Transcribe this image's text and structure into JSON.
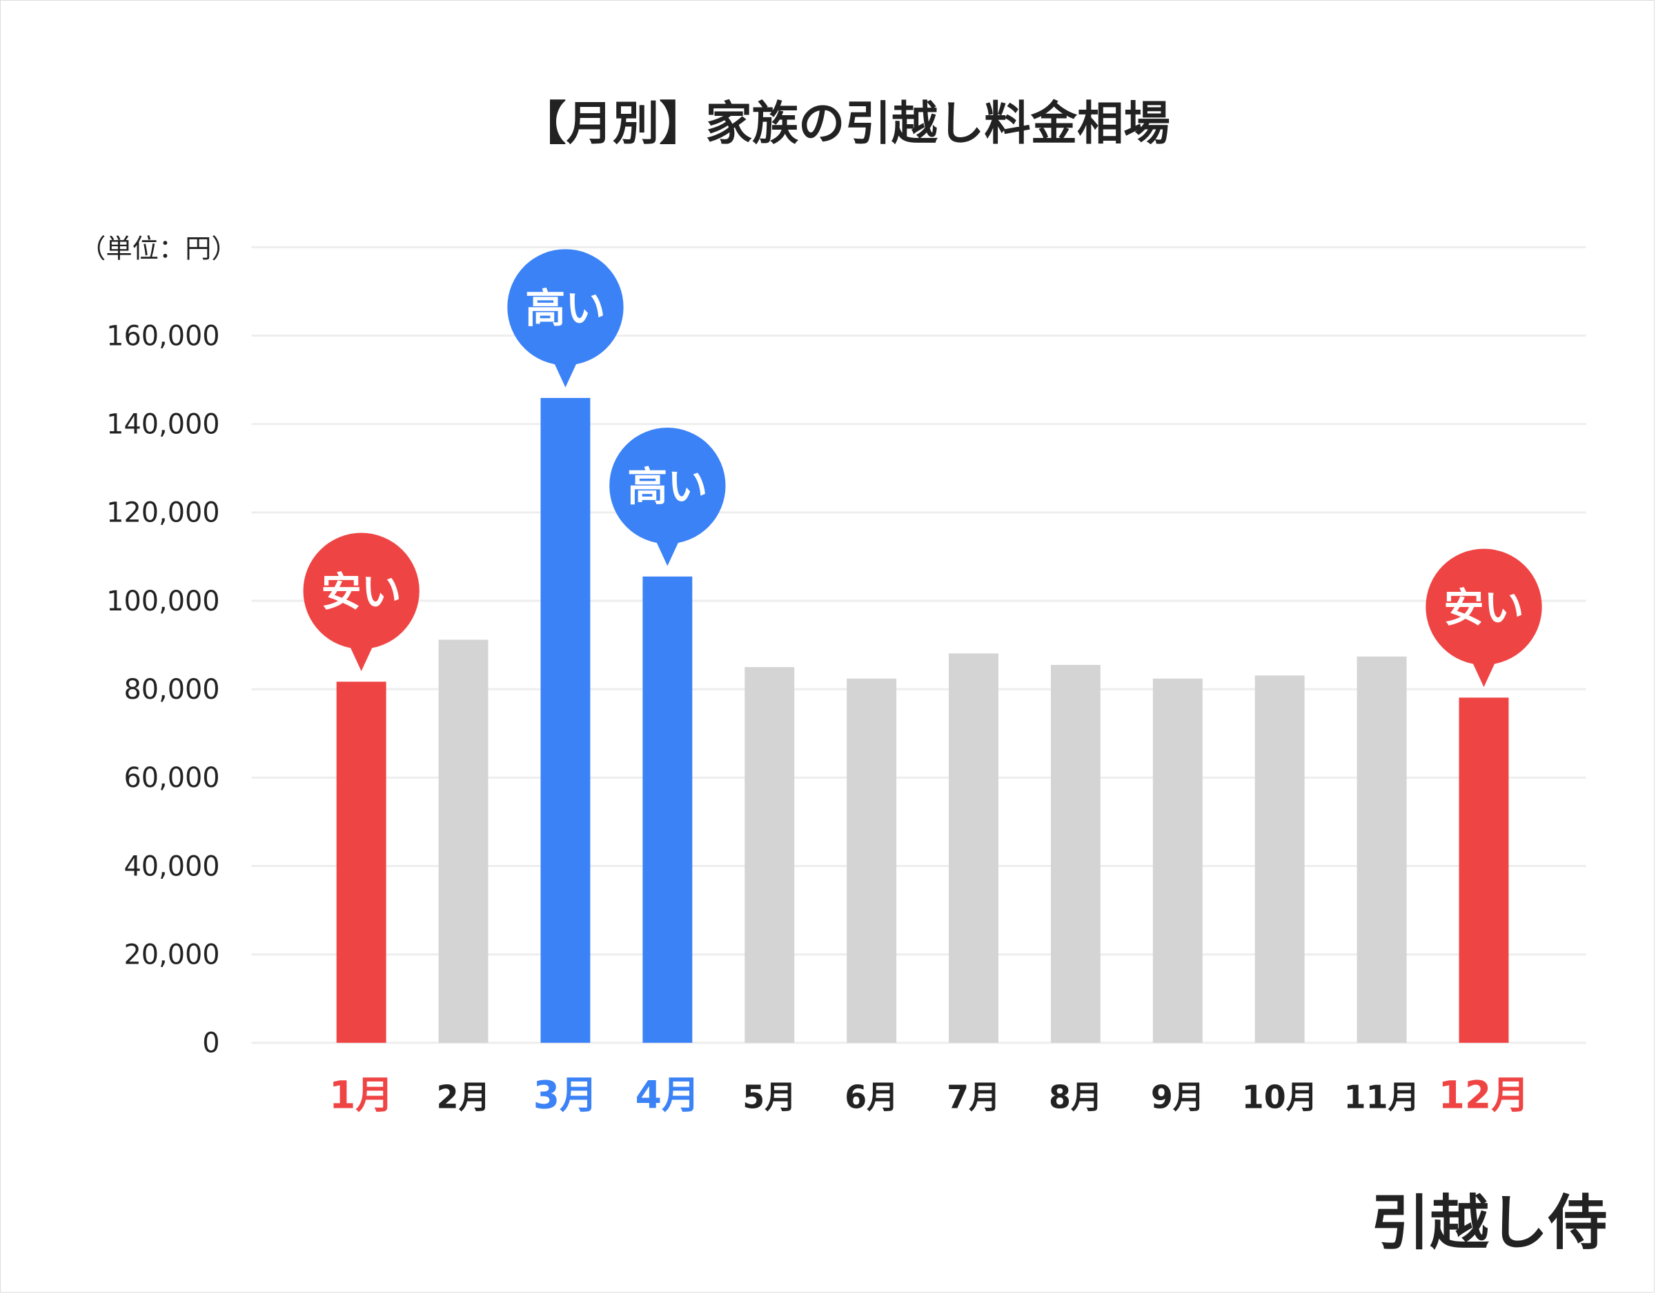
{
  "chart_data": {
    "type": "bar",
    "title": "【月別】家族の引越し料金相場",
    "unit_label": "（単位：円）",
    "categories": [
      "1月",
      "2月",
      "3月",
      "4月",
      "5月",
      "6月",
      "7月",
      "8月",
      "9月",
      "10月",
      "11月",
      "12月"
    ],
    "values": [
      81700,
      91200,
      145900,
      105500,
      85000,
      82400,
      88100,
      85500,
      82400,
      83100,
      87400,
      78100
    ],
    "highlight": [
      "low",
      "normal",
      "high",
      "high",
      "normal",
      "normal",
      "normal",
      "normal",
      "normal",
      "normal",
      "normal",
      "low"
    ],
    "annotations": {
      "high": "高い",
      "low": "安い"
    },
    "yticks": [
      0,
      20000,
      40000,
      60000,
      80000,
      100000,
      120000,
      140000,
      160000
    ],
    "ytick_labels": [
      "0",
      "20,000",
      "40,000",
      "60,000",
      "80,000",
      "100,000",
      "120,000",
      "140,000",
      "160,000"
    ],
    "ylim": [
      0,
      180000
    ],
    "grid": true,
    "colors": {
      "high": "#3B82F6",
      "low": "#EF4444",
      "normal": "#D4D4D4",
      "grid": "#EEEEEE",
      "text": "#222222"
    }
  },
  "brand": "引越し侍"
}
